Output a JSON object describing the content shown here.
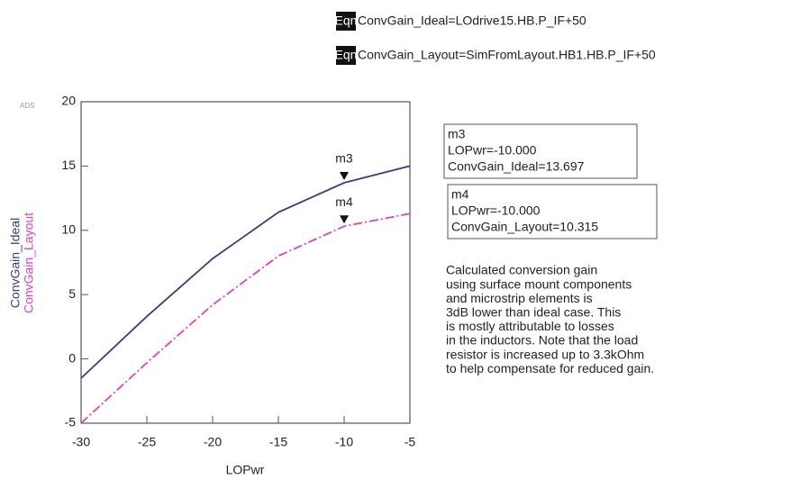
{
  "chart_data": {
    "type": "line",
    "equations": [
      {
        "badge": "Eqn",
        "text": "ConvGain_Ideal=LOdrive15.HB.P_IF+50"
      },
      {
        "badge": "Eqn",
        "text": "ConvGain_Layout=SimFromLayout.HB1.HB.P_IF+50"
      }
    ],
    "corner_label": "ADS",
    "x_label": "LOPwr",
    "x": [
      -30,
      -25,
      -20,
      -15,
      -10,
      -5
    ],
    "series": [
      {
        "name": "ConvGain_Ideal",
        "color": "#3b3b7e",
        "values": [
          -1.5,
          3.3,
          7.8,
          11.4,
          13.697,
          15.0
        ]
      },
      {
        "name": "ConvGain_Layout",
        "color": "#e040c0",
        "values": [
          -5.0,
          -0.3,
          4.2,
          8.0,
          10.315,
          11.3
        ]
      }
    ],
    "xlim": [
      -30,
      -5
    ],
    "xticks": [
      -30,
      -25,
      -20,
      -15,
      -10,
      -5
    ],
    "ylim": [
      -5,
      20
    ],
    "yticks": [
      -5,
      0,
      5,
      10,
      15,
      20
    ],
    "markers": [
      {
        "name": "m3",
        "lines": [
          "m3",
          "LOPwr=-10.000",
          "ConvGain_Ideal=13.697"
        ]
      },
      {
        "name": "m4",
        "lines": [
          "m4",
          "LOPwr=-10.000",
          "ConvGain_Layout=10.315"
        ]
      }
    ],
    "note": [
      "Calculated conversion gain",
      "using surface mount components",
      "and microstrip elements is",
      "3dB lower than ideal case. This",
      "is mostly attributable to losses",
      "in the inductors. Note that the load",
      "resistor is increased up to 3.3kOhm",
      "to help compensate for reduced gain."
    ]
  }
}
